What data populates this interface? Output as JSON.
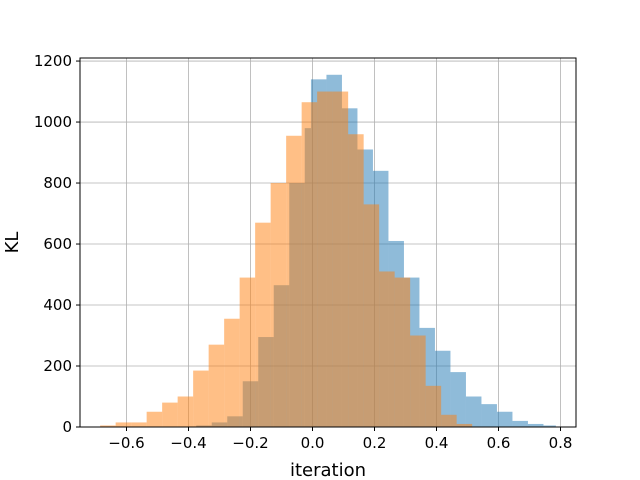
{
  "chart_data": {
    "type": "histogram",
    "title": "",
    "xlabel": "iteration",
    "ylabel": "KL",
    "xlim": [
      -0.75,
      0.85
    ],
    "ylim": [
      0,
      1210
    ],
    "grid": true,
    "legend": "none",
    "xticks": [
      -0.6,
      -0.4,
      -0.2,
      0.0,
      0.2,
      0.4,
      0.6,
      0.8
    ],
    "xtick_labels": [
      "−0.6",
      "−0.4",
      "−0.2",
      "0.0",
      "0.2",
      "0.4",
      "0.6",
      "0.8"
    ],
    "yticks": [
      0,
      200,
      400,
      600,
      800,
      1000,
      1200
    ],
    "ytick_labels": [
      "0",
      "200",
      "400",
      "600",
      "800",
      "1000",
      "1200"
    ],
    "series": [
      {
        "color": "#1f77b4",
        "opacity": 0.5,
        "bins": [
          [
            -0.375,
            -0.325,
            5
          ],
          [
            -0.325,
            -0.275,
            15
          ],
          [
            -0.275,
            -0.225,
            35
          ],
          [
            -0.225,
            -0.175,
            150
          ],
          [
            -0.175,
            -0.125,
            295
          ],
          [
            -0.125,
            -0.075,
            465
          ],
          [
            -0.075,
            -0.025,
            800
          ],
          [
            -0.025,
            -0.005,
            980
          ],
          [
            -0.005,
            0.045,
            1140
          ],
          [
            0.045,
            0.095,
            1155
          ],
          [
            0.095,
            0.145,
            1045
          ],
          [
            0.145,
            0.195,
            910
          ],
          [
            0.195,
            0.245,
            840
          ],
          [
            0.245,
            0.295,
            610
          ],
          [
            0.295,
            0.345,
            490
          ],
          [
            0.345,
            0.395,
            325
          ],
          [
            0.395,
            0.445,
            250
          ],
          [
            0.445,
            0.495,
            180
          ],
          [
            0.495,
            0.545,
            100
          ],
          [
            0.545,
            0.595,
            75
          ],
          [
            0.595,
            0.645,
            50
          ],
          [
            0.645,
            0.695,
            20
          ],
          [
            0.695,
            0.745,
            10
          ],
          [
            0.745,
            0.785,
            5
          ]
        ]
      },
      {
        "color": "#ff7f0e",
        "opacity": 0.5,
        "bins": [
          [
            -0.685,
            -0.635,
            5
          ],
          [
            -0.635,
            -0.585,
            15
          ],
          [
            -0.585,
            -0.535,
            15
          ],
          [
            -0.535,
            -0.485,
            50
          ],
          [
            -0.485,
            -0.435,
            80
          ],
          [
            -0.435,
            -0.385,
            100
          ],
          [
            -0.385,
            -0.335,
            185
          ],
          [
            -0.335,
            -0.285,
            270
          ],
          [
            -0.285,
            -0.235,
            355
          ],
          [
            -0.235,
            -0.185,
            490
          ],
          [
            -0.185,
            -0.135,
            670
          ],
          [
            -0.135,
            -0.085,
            800
          ],
          [
            -0.085,
            -0.035,
            955
          ],
          [
            -0.035,
            0.015,
            1065
          ],
          [
            0.015,
            0.065,
            1100
          ],
          [
            0.065,
            0.115,
            1100
          ],
          [
            0.115,
            0.165,
            960
          ],
          [
            0.165,
            0.215,
            730
          ],
          [
            0.215,
            0.265,
            510
          ],
          [
            0.265,
            0.315,
            490
          ],
          [
            0.315,
            0.365,
            300
          ],
          [
            0.365,
            0.415,
            135
          ],
          [
            0.415,
            0.465,
            40
          ],
          [
            0.465,
            0.515,
            10
          ]
        ]
      }
    ]
  }
}
